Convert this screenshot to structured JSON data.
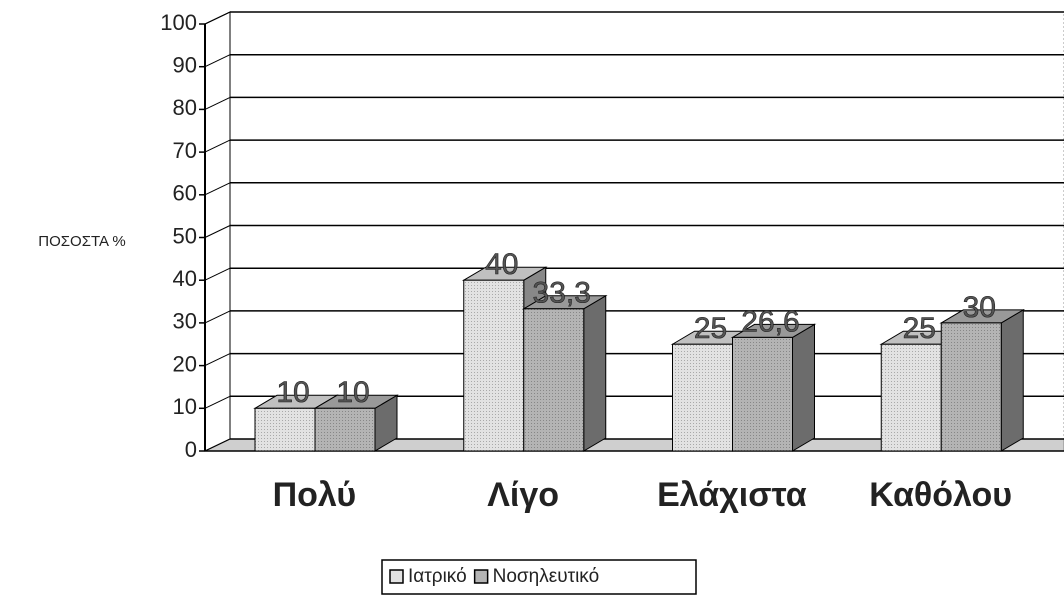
{
  "chart_data": {
    "type": "bar3d",
    "y_label": "ΠΟΣΟΣΤΑ %",
    "categories": [
      "Πολύ",
      "Λίγο",
      "Ελάχιστα",
      "Καθόλου"
    ],
    "series": [
      {
        "name": "Ιατρικό",
        "color": "#e2e2e2",
        "values": [
          10,
          40,
          25,
          25
        ]
      },
      {
        "name": "Νοσηλευτικό",
        "color": "#b4b4b4",
        "values": [
          10,
          33.3,
          26.6,
          30
        ],
        "value_labels": [
          "10",
          "33,3",
          "26,6",
          "30"
        ]
      }
    ],
    "ylim": [
      0,
      100
    ],
    "yticks": [
      0,
      10,
      20,
      30,
      40,
      50,
      60,
      70,
      80,
      90,
      100
    ],
    "grid": true
  }
}
